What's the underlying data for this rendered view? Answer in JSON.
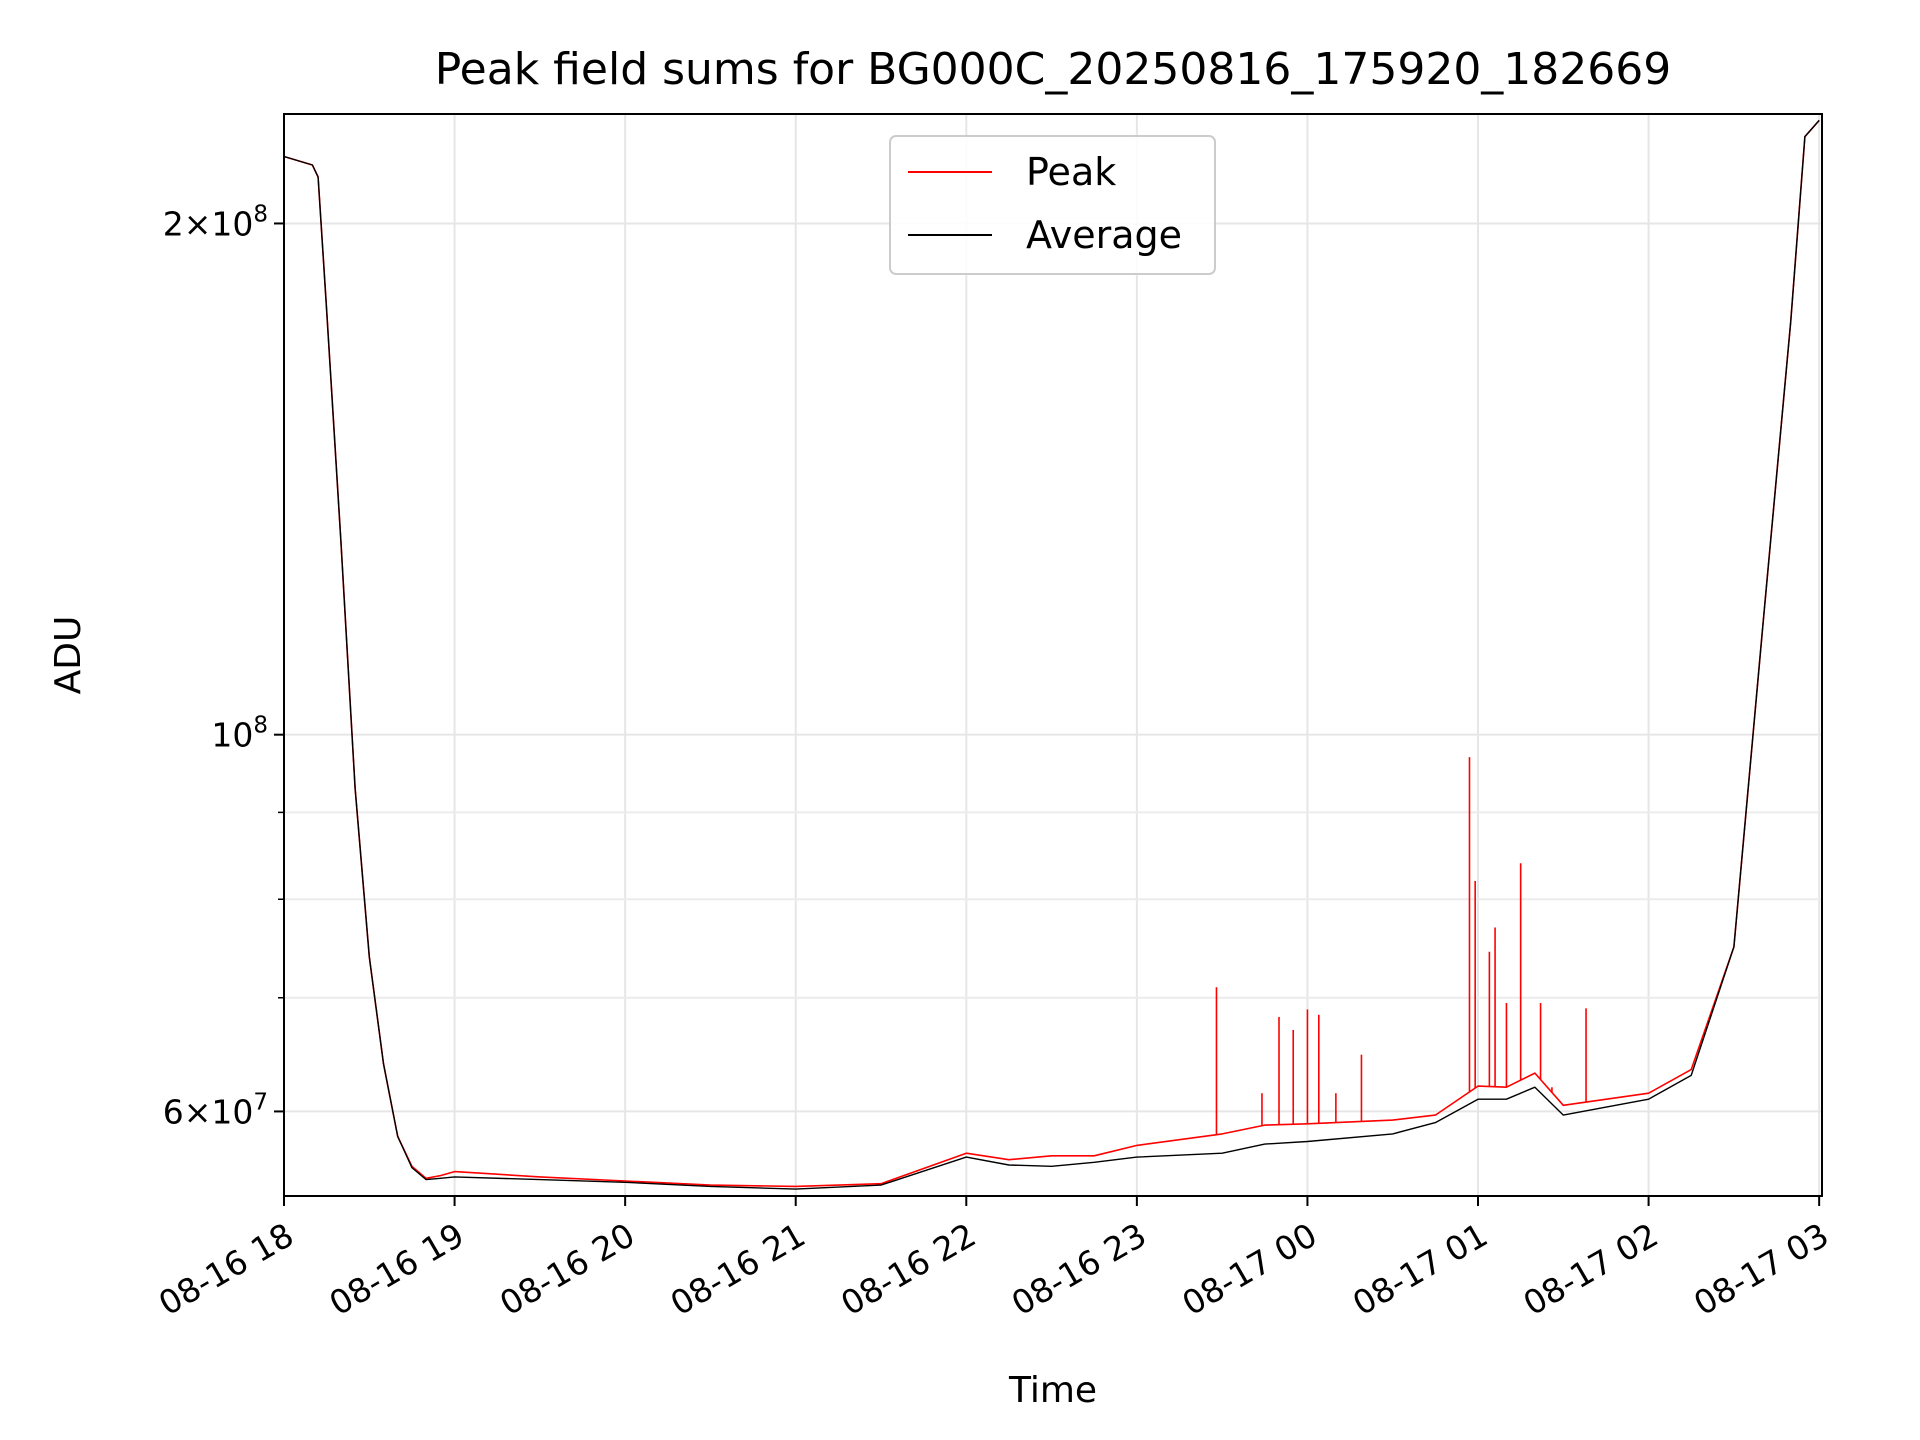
{
  "chart_data": {
    "type": "line",
    "title": "Peak field sums for BG000C_20250816_175920_182669",
    "xlabel": "Time",
    "ylabel": "ADU",
    "yscale": "log",
    "grid": true,
    "legend_position": "upper center",
    "x_ticks": [
      "08-16 18",
      "08-16 19",
      "08-16 20",
      "08-16 21",
      "08-16 22",
      "08-16 23",
      "08-17 00",
      "08-17 01",
      "08-17 02",
      "08-17 03"
    ],
    "y_ticks": [
      {
        "value": 60000000,
        "mant": "6",
        "times": "×",
        "base": "10",
        "exp": "7"
      },
      {
        "value": 100000000,
        "mant": "",
        "times": "",
        "base": "10",
        "exp": "8"
      },
      {
        "value": 200000000,
        "mant": "2",
        "times": "×",
        "base": "10",
        "exp": "8"
      }
    ],
    "xlim": [
      "2025-08-16 18:00",
      "2025-08-17 03:01"
    ],
    "ylim": [
      53500000,
      232000000
    ],
    "series": [
      {
        "name": "Peak",
        "color": "#ff0000",
        "x": [
          "2025-08-16 18:00",
          "2025-08-16 18:10",
          "2025-08-16 18:12",
          "2025-08-16 18:15",
          "2025-08-16 18:20",
          "2025-08-16 18:25",
          "2025-08-16 18:30",
          "2025-08-16 18:35",
          "2025-08-16 18:40",
          "2025-08-16 18:45",
          "2025-08-16 18:50",
          "2025-08-16 18:55",
          "2025-08-16 19:00",
          "2025-08-16 19:30",
          "2025-08-16 20:00",
          "2025-08-16 20:30",
          "2025-08-16 21:00",
          "2025-08-16 21:30",
          "2025-08-16 22:00",
          "2025-08-16 22:15",
          "2025-08-16 22:30",
          "2025-08-16 22:45",
          "2025-08-16 23:00",
          "2025-08-16 23:30",
          "2025-08-16 23:45",
          "2025-08-17 00:00",
          "2025-08-17 00:30",
          "2025-08-17 00:45",
          "2025-08-17 01:00",
          "2025-08-17 01:10",
          "2025-08-17 01:20",
          "2025-08-17 01:30",
          "2025-08-17 02:00",
          "2025-08-17 02:15",
          "2025-08-17 02:30",
          "2025-08-17 02:40",
          "2025-08-17 02:50",
          "2025-08-17 02:55",
          "2025-08-17 03:00"
        ],
        "y": [
          219000000,
          216500000,
          213000000,
          178000000,
          130000000,
          93000000,
          74000000,
          64000000,
          58000000,
          55700000,
          54800000,
          55000000,
          55300000,
          54900000,
          54600000,
          54300000,
          54200000,
          54400000,
          56700000,
          56200000,
          56500000,
          56500000,
          57300000,
          58200000,
          58900000,
          59000000,
          59300000,
          59700000,
          62100000,
          62000000,
          63200000,
          60500000,
          61500000,
          63500000,
          75000000,
          115000000,
          175000000,
          225000000,
          230000000
        ]
      },
      {
        "name": "Average",
        "color": "#000000",
        "x": [
          "2025-08-16 18:00",
          "2025-08-16 18:10",
          "2025-08-16 18:12",
          "2025-08-16 18:15",
          "2025-08-16 18:20",
          "2025-08-16 18:25",
          "2025-08-16 18:30",
          "2025-08-16 18:35",
          "2025-08-16 18:40",
          "2025-08-16 18:45",
          "2025-08-16 18:50",
          "2025-08-16 18:55",
          "2025-08-16 19:00",
          "2025-08-16 19:30",
          "2025-08-16 20:00",
          "2025-08-16 20:30",
          "2025-08-16 21:00",
          "2025-08-16 21:30",
          "2025-08-16 22:00",
          "2025-08-16 22:15",
          "2025-08-16 22:30",
          "2025-08-16 22:45",
          "2025-08-16 23:00",
          "2025-08-16 23:30",
          "2025-08-16 23:45",
          "2025-08-17 00:00",
          "2025-08-17 00:30",
          "2025-08-17 00:45",
          "2025-08-17 01:00",
          "2025-08-17 01:10",
          "2025-08-17 01:20",
          "2025-08-17 01:30",
          "2025-08-17 02:00",
          "2025-08-17 02:15",
          "2025-08-17 02:30",
          "2025-08-17 02:40",
          "2025-08-17 02:50",
          "2025-08-17 02:55",
          "2025-08-17 03:00"
        ],
        "y": [
          219000000,
          216500000,
          213000000,
          178000000,
          130000000,
          93000000,
          74000000,
          64000000,
          58000000,
          55600000,
          54700000,
          54800000,
          54900000,
          54700000,
          54500000,
          54200000,
          54000000,
          54300000,
          56400000,
          55800000,
          55700000,
          56000000,
          56400000,
          56700000,
          57400000,
          57600000,
          58200000,
          59100000,
          61000000,
          61000000,
          62000000,
          59700000,
          61000000,
          63000000,
          75000000,
          115000000,
          175000000,
          225000000,
          230000000
        ]
      }
    ],
    "spikes": [
      {
        "series": "Peak",
        "x": "2025-08-16 23:28",
        "y": 71000000
      },
      {
        "series": "Peak",
        "x": "2025-08-16 23:50",
        "y": 68200000
      },
      {
        "series": "Peak",
        "x": "2025-08-16 23:55",
        "y": 67000000
      },
      {
        "series": "Peak",
        "x": "2025-08-17 00:00",
        "y": 68900000
      },
      {
        "series": "Peak",
        "x": "2025-08-17 00:04",
        "y": 68400000
      },
      {
        "series": "Peak",
        "x": "2025-08-17 00:19",
        "y": 64800000
      },
      {
        "series": "Peak",
        "x": "2025-08-16 23:44",
        "y": 61500000
      },
      {
        "series": "Peak",
        "x": "2025-08-17 00:10",
        "y": 61500000
      },
      {
        "series": "Peak",
        "x": "2025-08-17 00:57",
        "y": 97000000
      },
      {
        "series": "Peak",
        "x": "2025-08-17 00:59",
        "y": 82000000
      },
      {
        "series": "Peak",
        "x": "2025-08-17 01:04",
        "y": 74500000
      },
      {
        "series": "Peak",
        "x": "2025-08-17 01:06",
        "y": 77000000
      },
      {
        "series": "Peak",
        "x": "2025-08-17 01:10",
        "y": 69500000
      },
      {
        "series": "Peak",
        "x": "2025-08-17 01:15",
        "y": 84000000
      },
      {
        "series": "Peak",
        "x": "2025-08-17 01:22",
        "y": 69500000
      },
      {
        "series": "Peak",
        "x": "2025-08-17 01:38",
        "y": 69000000
      },
      {
        "series": "Peak",
        "x": "2025-08-17 01:26",
        "y": 62000000
      }
    ]
  }
}
